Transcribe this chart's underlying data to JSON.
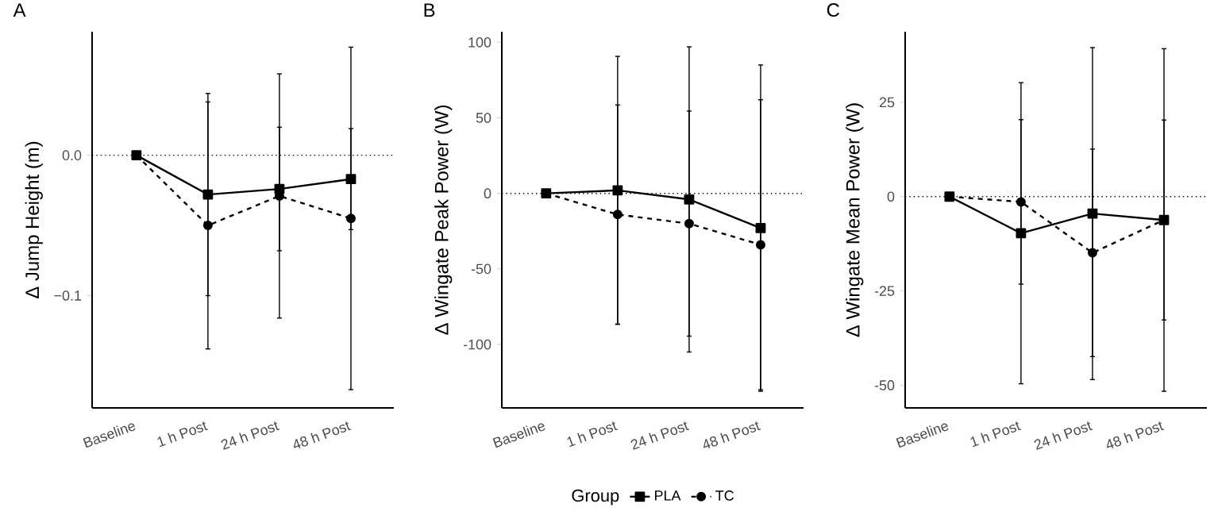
{
  "chart_data": [
    {
      "type": "line",
      "title": "A",
      "ylabel": "Δ Jump Height (m)",
      "categories": [
        "Baseline",
        "1 h Post",
        "24 h Post",
        "48 h Post"
      ],
      "ylim": [
        -0.18,
        0.088
      ],
      "yticks": [
        {
          "value": -0.1,
          "label": "−0.1"
        },
        {
          "value": 0,
          "label": "0.0"
        }
      ],
      "ref_lines": [
        {
          "axis": "y",
          "value": 0,
          "line_style": "dotted"
        }
      ],
      "series": [
        {
          "color": "#000000",
          "marker": "square",
          "line_style": "solid",
          "values": [
            0,
            -0.028,
            -0.024,
            -0.017
          ],
          "errors": [
            null,
            0.072,
            0.044,
            0.036
          ]
        },
        {
          "color": "#000000",
          "marker": "circle",
          "line_style": "dashed",
          "values": [
            0,
            -0.05,
            -0.029,
            -0.045
          ],
          "errors": [
            null,
            0.088,
            0.087,
            0.122
          ]
        }
      ]
    },
    {
      "type": "line",
      "title": "B",
      "ylabel": "Δ Wingate Peak Power (W)",
      "categories": [
        "Baseline",
        "1 h Post",
        "24 h Post",
        "48 h Post"
      ],
      "ylim": [
        -142,
        107
      ],
      "yticks": [
        -100,
        -50,
        0,
        50,
        100
      ],
      "legend": "bottom",
      "legend_title": "Group",
      "ref_lines": [
        {
          "axis": "y",
          "value": 0,
          "line_style": "dotted"
        }
      ],
      "series": [
        {
          "name": "PLA",
          "color": "#000000",
          "marker": "square",
          "line_style": "solid",
          "values": [
            0,
            2,
            -4,
            -23
          ],
          "errors": [
            null,
            88.7,
            101,
            108
          ]
        },
        {
          "name": "TC",
          "color": "#000000",
          "marker": "circle",
          "line_style": "dashed",
          "values": [
            0,
            -14,
            -20,
            -34
          ],
          "errors": [
            null,
            72.5,
            74.5,
            96
          ]
        }
      ]
    },
    {
      "type": "line",
      "title": "C",
      "ylabel": "Δ Wingate Mean Power (W)",
      "categories": [
        "Baseline",
        "1 h Post",
        "24 h Post",
        "48 h Post"
      ],
      "ylim": [
        -56,
        43.7
      ],
      "yticks": [
        -50,
        -25,
        0,
        25
      ],
      "ref_lines": [
        {
          "axis": "y",
          "value": 0,
          "line_style": "dotted"
        }
      ],
      "series": [
        {
          "color": "#000000",
          "marker": "square",
          "line_style": "solid",
          "values": [
            0,
            -9.7,
            -4.5,
            -6.2
          ],
          "errors": [
            null,
            39.9,
            44,
            45.4
          ]
        },
        {
          "color": "#000000",
          "marker": "circle",
          "line_style": "dashed",
          "values": [
            0,
            -1.4,
            -14.9,
            -6.2
          ],
          "errors": [
            null,
            21.8,
            27.5,
            26.5
          ]
        }
      ]
    }
  ]
}
